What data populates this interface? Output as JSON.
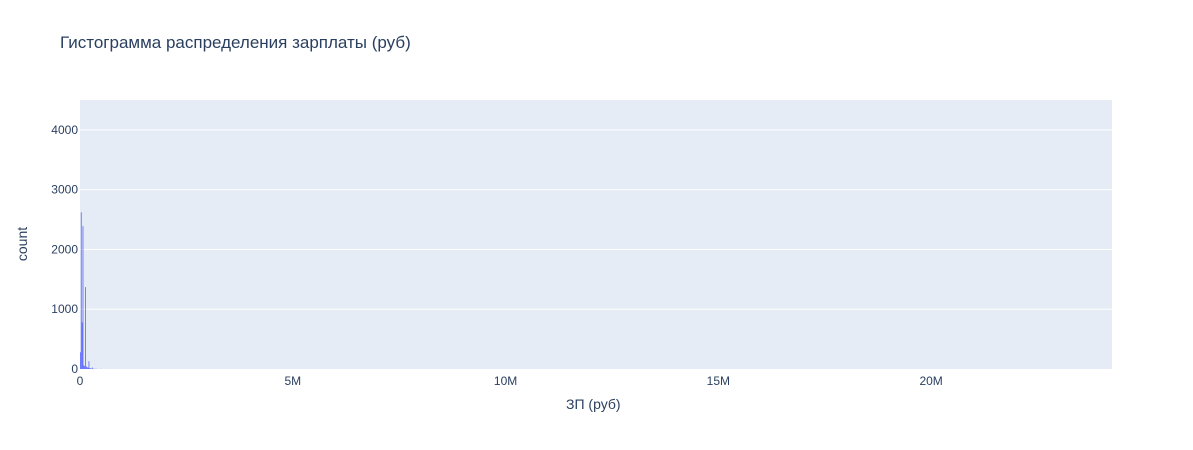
{
  "chart_data": {
    "type": "bar",
    "title": "Гистограмма распределения зарплаты (руб)",
    "xlabel": "ЗП (руб)",
    "ylabel": "count",
    "xlim": [
      0,
      24250000
    ],
    "ylim": [
      0,
      4500
    ],
    "x_ticks": [
      0,
      5000000,
      10000000,
      15000000,
      20000000
    ],
    "x_tick_labels": [
      "0",
      "5M",
      "10M",
      "15M",
      "20M"
    ],
    "y_ticks": [
      0,
      1000,
      2000,
      3000,
      4000
    ],
    "y_tick_labels": [
      "0",
      "1000",
      "2000",
      "3000",
      "4000"
    ],
    "bin_width": 20000,
    "bins": [
      {
        "x0": 0,
        "x1": 20000,
        "count": 280
      },
      {
        "x0": 20000,
        "x1": 40000,
        "count": 2620
      },
      {
        "x0": 40000,
        "x1": 60000,
        "count": 780
      },
      {
        "x0": 60000,
        "x1": 80000,
        "count": 2390
      },
      {
        "x0": 80000,
        "x1": 100000,
        "count": 60
      },
      {
        "x0": 100000,
        "x1": 120000,
        "count": 50
      },
      {
        "x0": 120000,
        "x1": 140000,
        "count": 1370
      },
      {
        "x0": 140000,
        "x1": 160000,
        "count": 40
      },
      {
        "x0": 160000,
        "x1": 180000,
        "count": 30
      },
      {
        "x0": 180000,
        "x1": 200000,
        "count": 20
      },
      {
        "x0": 200000,
        "x1": 220000,
        "count": 130
      },
      {
        "x0": 220000,
        "x1": 240000,
        "count": 15
      },
      {
        "x0": 240000,
        "x1": 260000,
        "count": 10
      },
      {
        "x0": 260000,
        "x1": 280000,
        "count": 8
      },
      {
        "x0": 280000,
        "x1": 300000,
        "count": 25
      },
      {
        "x0": 300000,
        "x1": 320000,
        "count": 5
      },
      {
        "x0": 340000,
        "x1": 360000,
        "count": 4
      },
      {
        "x0": 380000,
        "x1": 400000,
        "count": 3
      },
      {
        "x0": 480000,
        "x1": 500000,
        "count": 2
      }
    ],
    "grid": true,
    "colors": {
      "bar": "#636efa",
      "plot_background": "#e5ecf6",
      "grid": "#ffffff",
      "text": "#2a3f5f"
    }
  }
}
